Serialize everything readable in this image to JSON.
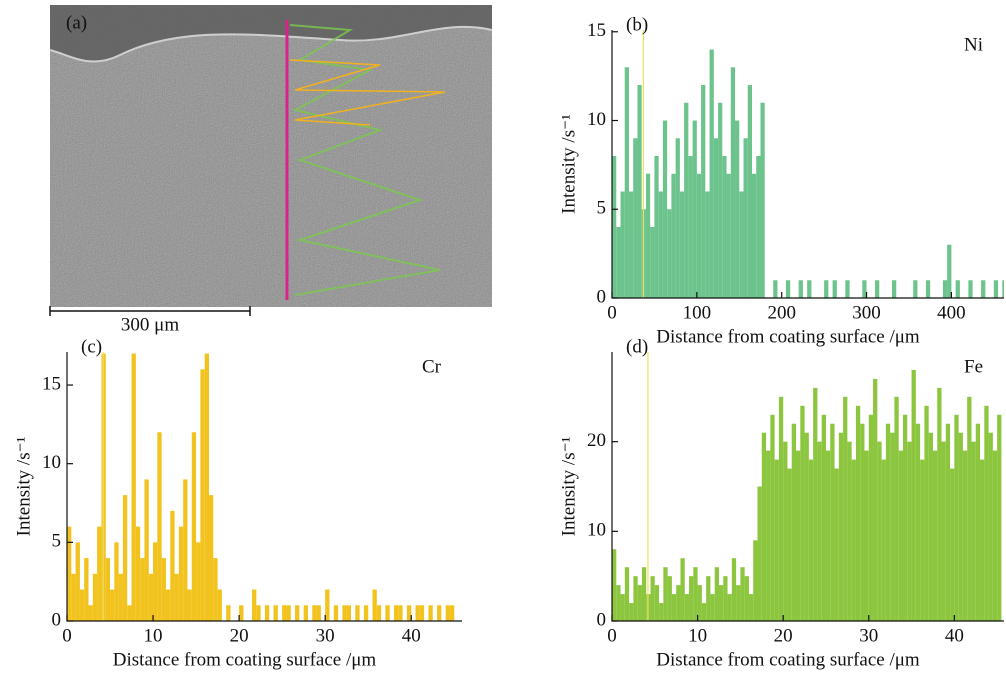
{
  "panel_a": {
    "label": "(a)",
    "scale_bar": "300 μm"
  },
  "chart_data": [
    {
      "type": "bar",
      "panel": "(b)",
      "element": "Ni",
      "color": "#6cc48c",
      "marker_x": 37,
      "x_label": "Distance from coating surface /μm",
      "y_label": "Intensity /s⁻¹",
      "xlim": [
        0,
        462
      ],
      "xticks": [
        0,
        100,
        200,
        300,
        400
      ],
      "ylim": [
        0,
        15.1
      ],
      "yticks": [
        0,
        5,
        10,
        15
      ],
      "x": [
        0,
        5,
        10,
        15,
        20,
        25,
        30,
        35,
        40,
        45,
        50,
        55,
        60,
        65,
        70,
        75,
        80,
        85,
        90,
        95,
        100,
        105,
        110,
        115,
        120,
        125,
        130,
        135,
        140,
        145,
        150,
        155,
        160,
        165,
        170,
        175,
        180,
        185,
        190,
        195,
        200,
        205,
        210,
        215,
        220,
        225,
        230,
        235,
        240,
        245,
        250,
        255,
        260,
        265,
        270,
        275,
        280,
        285,
        290,
        295,
        300,
        305,
        310,
        315,
        320,
        325,
        330,
        335,
        340,
        345,
        350,
        355,
        360,
        365,
        370,
        375,
        380,
        385,
        390,
        395,
        400,
        405,
        410,
        415,
        420,
        425,
        430,
        435,
        440,
        445,
        450,
        455,
        460
      ],
      "values": [
        8,
        4,
        6,
        13,
        6,
        9,
        12,
        5,
        7,
        4,
        8,
        6,
        10,
        5,
        7,
        9,
        6,
        11,
        8,
        10,
        7,
        12,
        6,
        14,
        9,
        11,
        8,
        7,
        13,
        10,
        6,
        9,
        12,
        7,
        8,
        11,
        0,
        0,
        1,
        0,
        0,
        1,
        0,
        0,
        1,
        0,
        1,
        0,
        0,
        0,
        1,
        0,
        1,
        0,
        0,
        1,
        0,
        0,
        0,
        1,
        0,
        0,
        1,
        0,
        0,
        0,
        1,
        0,
        0,
        0,
        0,
        1,
        0,
        0,
        1,
        0,
        0,
        0,
        1,
        3,
        0,
        1,
        0,
        0,
        1,
        0,
        0,
        1,
        0,
        0,
        1,
        0,
        1
      ]
    },
    {
      "type": "bar",
      "panel": "(c)",
      "element": "Cr",
      "color": "#f2c31f",
      "marker_x": 4.2,
      "x_label": "Distance from coating surface /μm",
      "y_label": "Intensity /s⁻¹",
      "xlim": [
        0,
        45.9
      ],
      "xticks": [
        0,
        10,
        20,
        30,
        40
      ],
      "ylim": [
        0,
        17.1
      ],
      "yticks": [
        0,
        5,
        10,
        15
      ],
      "x": [
        0,
        0.5,
        1,
        1.5,
        2,
        2.5,
        3,
        3.5,
        4,
        4.5,
        5,
        5.5,
        6,
        6.5,
        7,
        7.5,
        8,
        8.5,
        9,
        9.5,
        10,
        10.5,
        11,
        11.5,
        12,
        12.5,
        13,
        13.5,
        14,
        14.5,
        15,
        15.5,
        16,
        16.5,
        17,
        17.5,
        18,
        18.5,
        19,
        19.5,
        20,
        20.5,
        21,
        21.5,
        22,
        22.5,
        23,
        23.5,
        24,
        24.5,
        25,
        25.5,
        26,
        26.5,
        27,
        27.5,
        28,
        28.5,
        29,
        29.5,
        30,
        30.5,
        31,
        31.5,
        32,
        32.5,
        33,
        33.5,
        34,
        34.5,
        35,
        35.5,
        36,
        36.5,
        37,
        37.5,
        38,
        38.5,
        39,
        39.5,
        40,
        40.5,
        41,
        41.5,
        42,
        42.5,
        43,
        43.5,
        44,
        44.5,
        45
      ],
      "values": [
        6,
        3,
        5,
        2,
        4,
        1,
        3,
        6,
        17,
        4,
        2,
        5,
        3,
        8,
        1,
        17,
        6,
        4,
        9,
        3,
        5,
        12,
        4,
        2,
        7,
        3,
        6,
        9,
        2,
        12,
        5,
        16,
        17,
        8,
        4,
        2,
        0,
        1,
        0,
        0,
        1,
        0,
        0,
        2,
        1,
        0,
        1,
        0,
        1,
        0,
        1,
        1,
        0,
        1,
        0,
        1,
        0,
        1,
        1,
        0,
        2,
        0,
        1,
        0,
        1,
        1,
        0,
        1,
        0,
        1,
        0,
        2,
        1,
        0,
        1,
        0,
        1,
        1,
        0,
        1,
        0,
        1,
        1,
        0,
        1,
        0,
        1,
        0,
        1,
        1,
        0
      ]
    },
    {
      "type": "bar",
      "panel": "(d)",
      "element": "Fe",
      "color": "#8cc63f",
      "marker_x": 4.2,
      "x_label": "Distance from coating surface /μm",
      "y_label": "Intensity /s⁻¹",
      "xlim": [
        0,
        45.8
      ],
      "xticks": [
        0,
        10,
        20,
        30,
        40
      ],
      "ylim": [
        0,
        30
      ],
      "yticks": [
        0,
        10,
        20
      ],
      "x": [
        0,
        0.5,
        1,
        1.5,
        2,
        2.5,
        3,
        3.5,
        4,
        4.5,
        5,
        5.5,
        6,
        6.5,
        7,
        7.5,
        8,
        8.5,
        9,
        9.5,
        10,
        10.5,
        11,
        11.5,
        12,
        12.5,
        13,
        13.5,
        14,
        14.5,
        15,
        15.5,
        16,
        16.5,
        17,
        17.5,
        18,
        18.5,
        19,
        19.5,
        20,
        20.5,
        21,
        21.5,
        22,
        22.5,
        23,
        23.5,
        24,
        24.5,
        25,
        25.5,
        26,
        26.5,
        27,
        27.5,
        28,
        28.5,
        29,
        29.5,
        30,
        30.5,
        31,
        31.5,
        32,
        32.5,
        33,
        33.5,
        34,
        34.5,
        35,
        35.5,
        36,
        36.5,
        37,
        37.5,
        38,
        38.5,
        39,
        39.5,
        40,
        40.5,
        41,
        41.5,
        42,
        42.5,
        43,
        43.5,
        44,
        44.5,
        45
      ],
      "values": [
        8,
        4,
        3,
        6,
        2,
        5,
        4,
        6,
        3,
        5,
        4,
        2,
        6,
        5,
        3,
        4,
        7,
        3,
        5,
        6,
        4,
        2,
        5,
        3,
        6,
        4,
        5,
        3,
        7,
        4,
        6,
        5,
        3,
        9,
        15,
        21,
        19,
        23,
        18,
        25,
        20,
        17,
        22,
        19,
        24,
        21,
        18,
        26,
        20,
        23,
        19,
        22,
        17,
        21,
        25,
        20,
        18,
        24,
        22,
        19,
        23,
        27,
        20,
        18,
        22,
        21,
        25,
        19,
        23,
        20,
        28,
        22,
        18,
        24,
        21,
        19,
        26,
        20,
        22,
        17,
        23,
        21,
        19,
        25,
        20,
        22,
        18,
        24,
        21,
        19,
        23
      ]
    }
  ]
}
